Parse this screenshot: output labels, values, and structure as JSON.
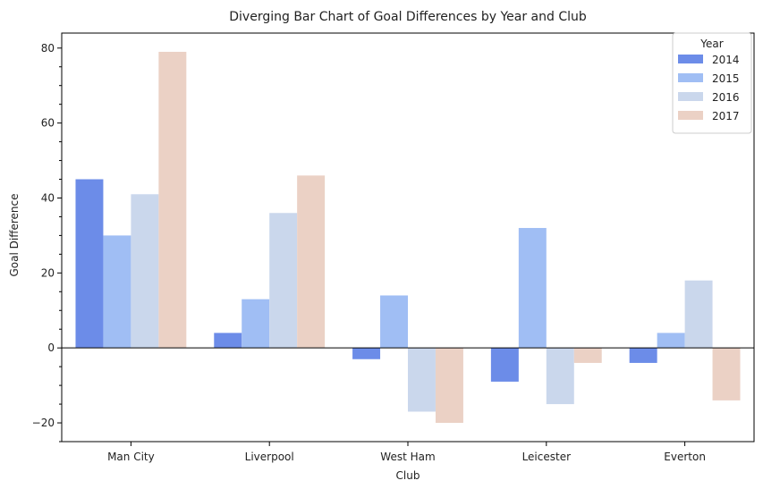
{
  "chart_data": {
    "type": "bar",
    "title": "Diverging Bar Chart of Goal Differences by Year and Club",
    "xlabel": "Club",
    "ylabel": "Goal Difference",
    "categories": [
      "Man City",
      "Liverpool",
      "West Ham",
      "Leicester",
      "Everton"
    ],
    "series": [
      {
        "name": "2014",
        "color": "#6c8ce8",
        "values": [
          45,
          4,
          -3,
          -9,
          -4
        ]
      },
      {
        "name": "2015",
        "color": "#a0bef4",
        "values": [
          30,
          13,
          14,
          32,
          4
        ]
      },
      {
        "name": "2016",
        "color": "#cad7ec",
        "values": [
          41,
          36,
          -17,
          -15,
          18
        ]
      },
      {
        "name": "2017",
        "color": "#ebd1c5",
        "values": [
          79,
          46,
          -20,
          -4,
          -14
        ]
      }
    ],
    "ylim": [
      -25,
      84
    ],
    "yticks": [
      -20,
      0,
      20,
      40,
      60,
      80
    ],
    "yticks_minor_step": 5,
    "zero_line": true,
    "grid": false,
    "legend": {
      "title": "Year",
      "placement": "top-right"
    }
  }
}
